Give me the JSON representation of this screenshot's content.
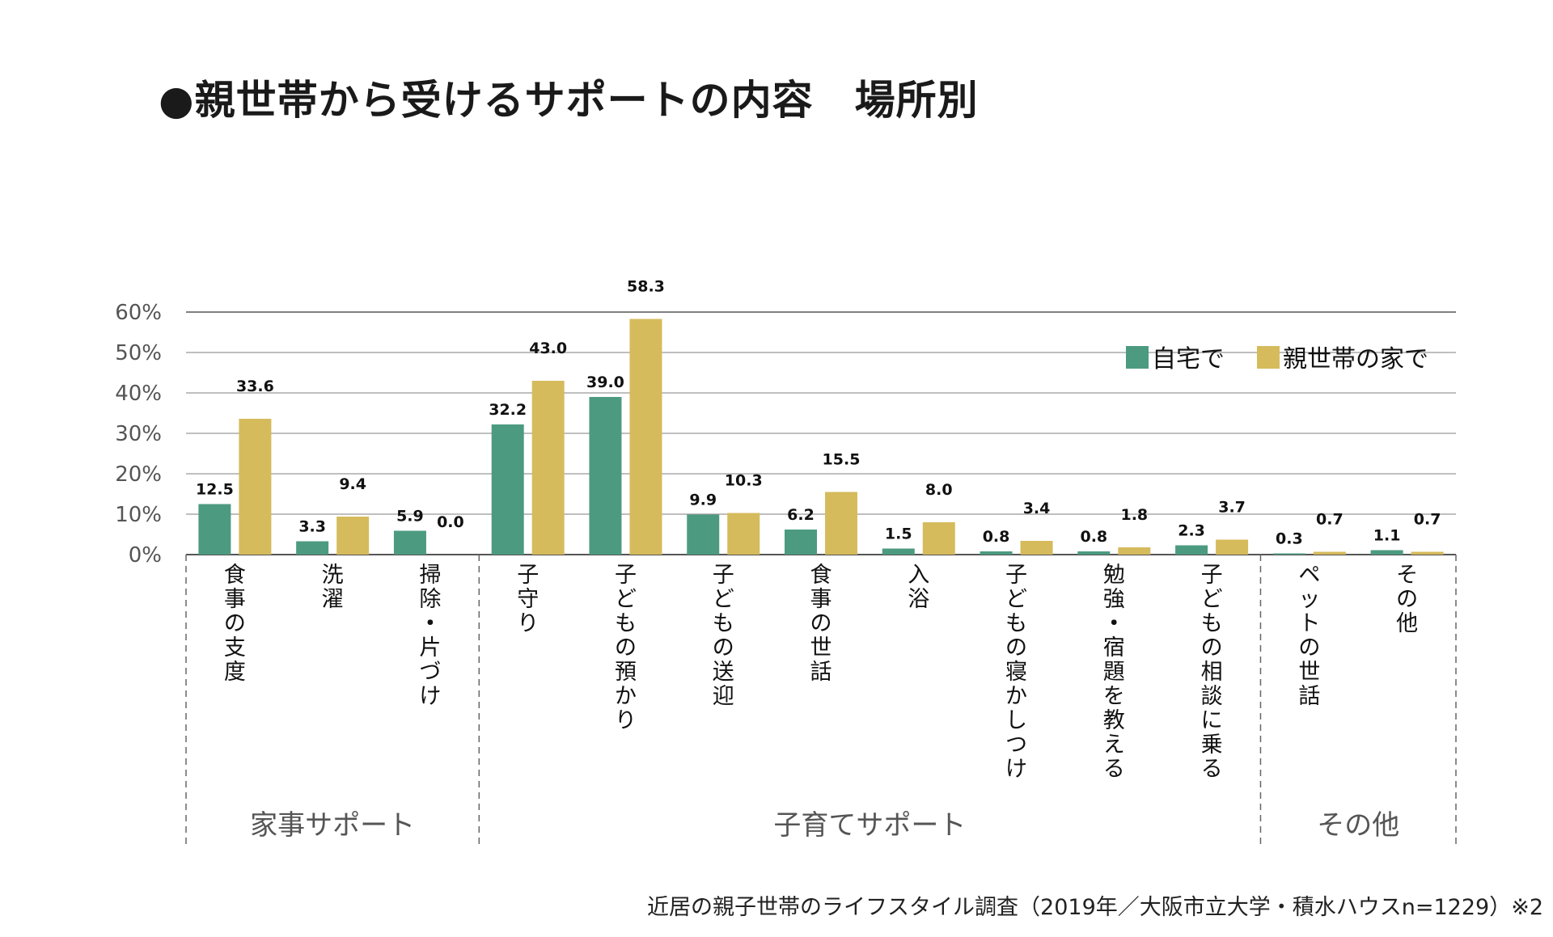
{
  "colors": {
    "home": "#4c9b80",
    "parent": "#d6bb5c"
  },
  "chart_data": {
    "type": "bar",
    "title": "●親世帯から受けるサポートの内容　場所別",
    "ylim": [
      0,
      60
    ],
    "yticks": [
      "60%",
      "50%",
      "40%",
      "30%",
      "20%",
      "10%",
      "0%"
    ],
    "ytick_values": [
      60,
      50,
      40,
      30,
      20,
      10,
      0
    ],
    "legend_position": "top-right",
    "grid": true,
    "categories": [
      "食事の支度",
      "洗濯",
      "掃除・片づけ",
      "子守り",
      "子どもの預かり",
      "子どもの送迎",
      "食事の世話",
      "入浴",
      "子どもの寝かしつけ",
      "勉強・宿題を教える",
      "子どもの相談に乗る",
      "ペットの世話",
      "その他"
    ],
    "series": [
      {
        "name": "自宅で",
        "values": [
          12.5,
          3.3,
          5.9,
          32.2,
          39.0,
          9.9,
          6.2,
          1.5,
          0.8,
          0.8,
          2.3,
          0.3,
          1.1
        ],
        "labels": [
          "12.5",
          "3.3",
          "5.9",
          "32.2",
          "39.0",
          "9.9",
          "6.2",
          "1.5",
          "0.8",
          "0.8",
          "2.3",
          "0.3",
          "1.1"
        ]
      },
      {
        "name": "親世帯の家で",
        "values": [
          33.6,
          9.4,
          0.0,
          43.0,
          58.3,
          10.3,
          15.5,
          8.0,
          3.4,
          1.8,
          3.7,
          0.7,
          0.7
        ],
        "labels": [
          "33.6",
          "9.4",
          "0.0",
          "43.0",
          "58.3",
          "10.3",
          "15.5",
          "8.0",
          "3.4",
          "1.8",
          "3.7",
          "0.7",
          "0.7"
        ]
      }
    ],
    "groups": [
      {
        "label": "家事サポート",
        "start": 0,
        "end": 2
      },
      {
        "label": "子育てサポート",
        "start": 3,
        "end": 10
      },
      {
        "label": "その他",
        "start": 11,
        "end": 12
      }
    ],
    "source": "近居の親子世帯のライフスタイル調査（2019年／大阪市立大学・積水ハウスn=1229）※2"
  }
}
